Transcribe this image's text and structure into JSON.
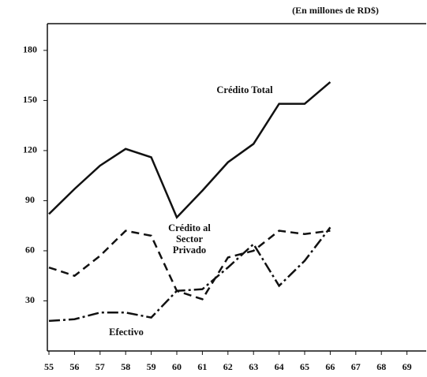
{
  "chart_data": {
    "type": "line",
    "subtitle": "(En millones de RD$)",
    "categories": [
      "55",
      "56",
      "57",
      "58",
      "59",
      "60",
      "61",
      "62",
      "63",
      "64",
      "65",
      "66",
      "67",
      "68",
      "69"
    ],
    "series": [
      {
        "name": "Crédito Total",
        "color": "#111111",
        "dash": "solid",
        "values": [
          82,
          97,
          111,
          121,
          116,
          80,
          96,
          113,
          124,
          148,
          148,
          161,
          null,
          null,
          null
        ]
      },
      {
        "name": "Crédito al Sector Privado",
        "color": "#111111",
        "dash": "dashed",
        "values": [
          50,
          45,
          57,
          72,
          69,
          36,
          31,
          56,
          60,
          72,
          70,
          72,
          null,
          null,
          null
        ]
      },
      {
        "name": "Efectivo",
        "color": "#111111",
        "dash": "dashdot",
        "values": [
          18,
          19,
          23,
          23,
          20,
          36,
          37,
          50,
          64,
          39,
          54,
          74,
          null,
          null,
          null
        ]
      }
    ],
    "ylim": [
      0,
      196
    ],
    "yticks": [
      30,
      60,
      90,
      120,
      150,
      180
    ],
    "grid": false
  }
}
